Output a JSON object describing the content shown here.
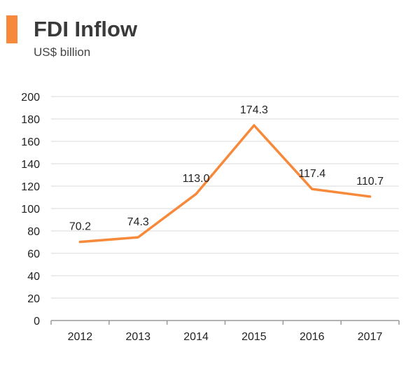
{
  "header": {
    "title": "FDI Inflow",
    "subtitle": "US$ billion"
  },
  "colors": {
    "accent": "#f7893b",
    "line": "#f7893b",
    "grid": "#d9d9d9",
    "axis": "#9a9a9a"
  },
  "chart_data": {
    "type": "line",
    "title": "FDI Inflow",
    "subtitle": "US$ billion",
    "xlabel": "",
    "ylabel": "",
    "categories": [
      "2012",
      "2013",
      "2014",
      "2015",
      "2016",
      "2017"
    ],
    "series": [
      {
        "values": [
          70.2,
          74.3,
          113.0,
          174.3,
          117.4,
          110.7
        ],
        "labels": [
          "70.2",
          "74.3",
          "113.0",
          "174.3",
          "117.4",
          "110.7"
        ]
      }
    ],
    "ylim": [
      0,
      200
    ],
    "yticks": [
      0,
      20,
      40,
      60,
      80,
      100,
      120,
      140,
      160,
      180,
      200
    ],
    "grid": true,
    "legend": "none"
  }
}
